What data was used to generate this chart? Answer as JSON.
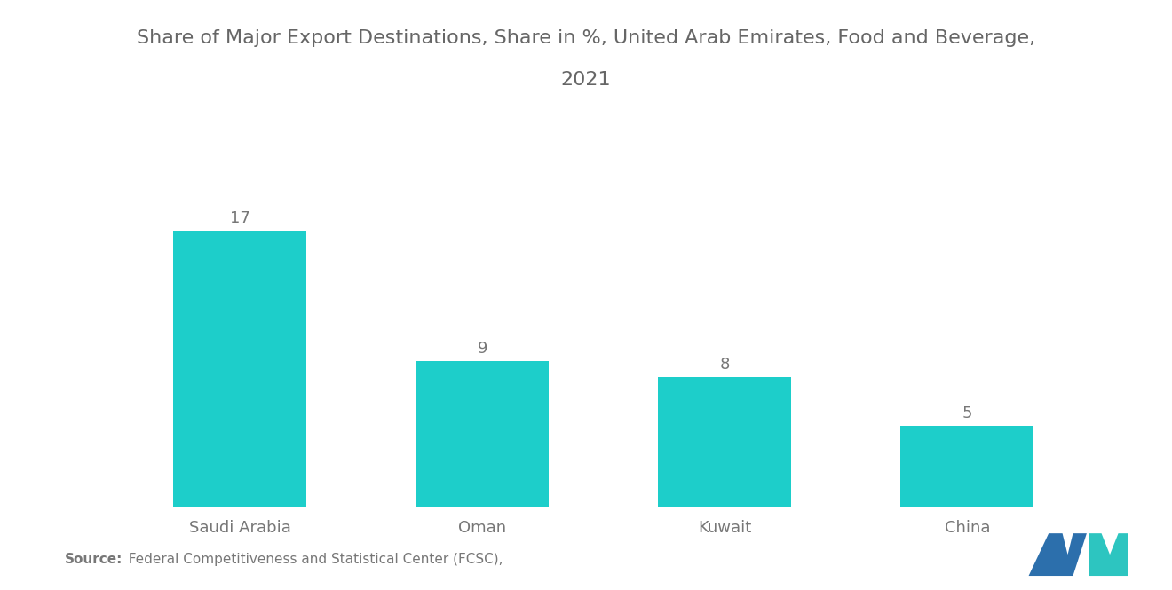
{
  "title_line1": "Share of Major Export Destinations, Share in %, United Arab Emirates, Food and Beverage,",
  "title_line2": "2021",
  "categories": [
    "Saudi Arabia",
    "Oman",
    "Kuwait",
    "China"
  ],
  "values": [
    17,
    9,
    8,
    5
  ],
  "bar_color": "#1DCECA",
  "value_labels": [
    "17",
    "9",
    "8",
    "5"
  ],
  "source_bold": "Source:",
  "source_rest": "  Federal Competitiveness and Statistical Center (FCSC),",
  "background_color": "#ffffff",
  "title_fontsize": 16,
  "label_fontsize": 13,
  "value_fontsize": 13,
  "source_fontsize": 11,
  "ylim": [
    0,
    21
  ],
  "bar_width": 0.55,
  "text_color": "#777777",
  "title_color": "#666666"
}
